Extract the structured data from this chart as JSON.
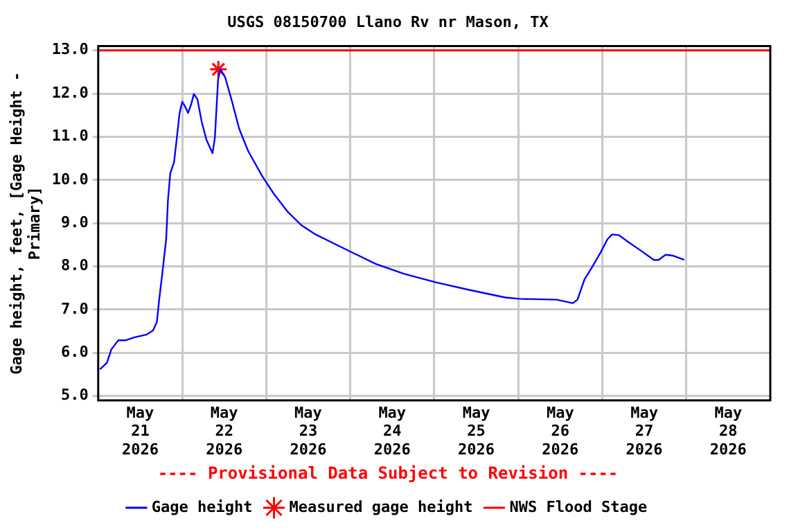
{
  "chart_data": {
    "type": "line",
    "title": "USGS 08150700 Llano Rv nr Mason, TX",
    "ylabel": "Gage height, feet, [Gage Height - Primary]",
    "annotations": [
      "---- Provisional Data Subject to Revision ----"
    ],
    "series": [
      {
        "name": "Gage height",
        "color": "#0000ff",
        "marker": "none",
        "x": [
          "2026-05-21T00:30",
          "2026-05-21T02:30",
          "2026-05-21T03:45",
          "2026-05-21T05:45",
          "2026-05-21T07:45",
          "2026-05-21T10:25",
          "2026-05-21T13:45",
          "2026-05-21T15:40",
          "2026-05-21T16:45",
          "2026-05-21T17:25",
          "2026-05-21T18:20",
          "2026-05-21T19:25",
          "2026-05-21T19:55",
          "2026-05-21T20:35",
          "2026-05-21T21:40",
          "2026-05-21T22:20",
          "2026-05-21T23:15",
          "2026-05-22T00:00",
          "2026-05-22T00:45",
          "2026-05-22T01:40",
          "2026-05-22T02:35",
          "2026-05-22T03:20",
          "2026-05-22T04:20",
          "2026-05-22T05:35",
          "2026-05-22T06:55",
          "2026-05-22T08:40",
          "2026-05-22T09:20",
          "2026-05-22T10:15",
          "2026-05-22T10:55",
          "2026-05-22T12:15",
          "2026-05-22T14:15",
          "2026-05-22T16:15",
          "2026-05-22T18:50",
          "2026-05-22T22:50",
          "2026-05-23T02:10",
          "2026-05-23T06:10",
          "2026-05-23T10:05",
          "2026-05-23T14:05",
          "2026-05-23T19:20",
          "2026-05-23T23:20",
          "2026-05-24T07:15",
          "2026-05-24T15:15",
          "2026-05-25T00:30",
          "2026-05-25T09:45",
          "2026-05-25T20:20",
          "2026-05-26T00:20",
          "2026-05-26T10:55",
          "2026-05-26T15:35",
          "2026-05-26T16:55",
          "2026-05-26T18:55",
          "2026-05-26T20:55",
          "2026-05-26T23:30",
          "2026-05-27T01:30",
          "2026-05-27T02:50",
          "2026-05-27T04:50",
          "2026-05-27T06:50",
          "2026-05-27T10:45",
          "2026-05-27T14:45",
          "2026-05-27T16:05",
          "2026-05-27T18:05",
          "2026-05-27T20:05",
          "2026-05-27T23:25"
        ],
        "values": [
          5.62,
          5.77,
          6.08,
          6.29,
          6.29,
          6.36,
          6.42,
          6.52,
          6.71,
          7.23,
          7.85,
          8.63,
          9.52,
          10.15,
          10.41,
          10.88,
          11.55,
          11.81,
          11.71,
          11.55,
          11.76,
          11.99,
          11.87,
          11.34,
          10.93,
          10.62,
          10.98,
          12.33,
          12.56,
          12.38,
          11.81,
          11.19,
          10.67,
          10.09,
          9.68,
          9.26,
          8.95,
          8.74,
          8.53,
          8.37,
          8.06,
          7.83,
          7.63,
          7.46,
          7.28,
          7.25,
          7.23,
          7.15,
          7.23,
          7.7,
          7.96,
          8.32,
          8.63,
          8.74,
          8.72,
          8.6,
          8.38,
          8.15,
          8.15,
          8.27,
          8.25,
          8.15
        ]
      },
      {
        "name": "Measured gage height",
        "color": "#ff0000",
        "type": "scatter",
        "marker": "cross",
        "x": [
          "2026-05-22T10:20"
        ],
        "values": [
          12.56
        ]
      }
    ],
    "ref_lines": [
      {
        "axis": "y",
        "value": 13.0,
        "label": "NWS Flood Stage",
        "color": "#ff0000",
        "line_style": "solid"
      }
    ],
    "xlim": [
      "2026-05-21",
      "2026-05-29"
    ],
    "xticks": [
      {
        "value": "2026-05-21T12:00",
        "label": "May 21 2026"
      },
      {
        "value": "2026-05-22T00:00",
        "label": null
      },
      {
        "value": "2026-05-22T12:00",
        "label": "May 22 2026"
      },
      {
        "value": "2026-05-23T00:00",
        "label": null
      },
      {
        "value": "2026-05-23T12:00",
        "label": "May 23 2026"
      },
      {
        "value": "2026-05-24T00:00",
        "label": null
      },
      {
        "value": "2026-05-24T12:00",
        "label": "May 24 2026"
      },
      {
        "value": "2026-05-25T00:00",
        "label": null
      },
      {
        "value": "2026-05-25T12:00",
        "label": "May 25 2026"
      },
      {
        "value": "2026-05-26T00:00",
        "label": null
      },
      {
        "value": "2026-05-26T12:00",
        "label": "May 26 2026"
      },
      {
        "value": "2026-05-27T00:00",
        "label": null
      },
      {
        "value": "2026-05-27T12:00",
        "label": "May 27 2026"
      },
      {
        "value": "2026-05-28T00:00",
        "label": null
      },
      {
        "value": "2026-05-28T12:00",
        "label": "May 28 2026"
      }
    ],
    "ylim": [
      4.9,
      13.1
    ],
    "yticks": [
      {
        "value": 5,
        "label": "5.0"
      },
      {
        "value": 6,
        "label": "6.0"
      },
      {
        "value": 7,
        "label": "7.0"
      },
      {
        "value": 8,
        "label": "8.0"
      },
      {
        "value": 9,
        "label": "9.0"
      },
      {
        "value": 10,
        "label": "10.0"
      },
      {
        "value": 11,
        "label": "11.0"
      },
      {
        "value": 12,
        "label": "12.0"
      },
      {
        "value": 13,
        "label": "13.0"
      }
    ],
    "grid": true,
    "legend": "bottom"
  }
}
